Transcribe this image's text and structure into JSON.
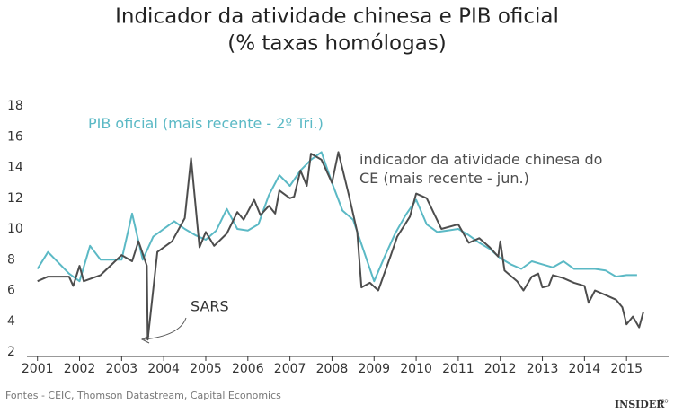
{
  "chart_data": {
    "type": "line",
    "title": "Indicador da atividade chinesa e PIB oficial",
    "subtitle": "(% taxas homólogas)",
    "xlim": [
      2000.75,
      2016.0
    ],
    "xticks": [
      2001,
      2002,
      2003,
      2004,
      2005,
      2006,
      2007,
      2008,
      2009,
      2010,
      2011,
      2012,
      2013,
      2014,
      2015
    ],
    "ylim": [
      2,
      18
    ],
    "yticks": [
      2,
      4,
      6,
      8,
      10,
      12,
      14,
      16,
      18
    ],
    "grid": false,
    "series": [
      {
        "name": "PIB oficial (mais recente - 2º Tri.)",
        "color": "#5bb9c5",
        "x": [
          2001.0,
          2001.25,
          2001.5,
          2001.75,
          2002.0,
          2002.25,
          2002.5,
          2002.75,
          2003.0,
          2003.25,
          2003.5,
          2003.75,
          2004.0,
          2004.25,
          2004.5,
          2004.75,
          2005.0,
          2005.25,
          2005.5,
          2005.75,
          2006.0,
          2006.25,
          2006.5,
          2006.75,
          2007.0,
          2007.25,
          2007.5,
          2007.75,
          2008.0,
          2008.25,
          2008.5,
          2008.75,
          2009.0,
          2009.25,
          2009.5,
          2009.75,
          2010.0,
          2010.25,
          2010.5,
          2010.75,
          2011.0,
          2011.25,
          2011.5,
          2011.75,
          2012.0,
          2012.25,
          2012.5,
          2012.75,
          2013.0,
          2013.25,
          2013.5,
          2013.75,
          2014.0,
          2014.25,
          2014.5,
          2014.75,
          2015.0,
          2015.25
        ],
        "values": [
          7.4,
          8.5,
          7.8,
          7.1,
          6.6,
          8.9,
          8.0,
          8.0,
          8.0,
          11.0,
          8.0,
          9.5,
          10.0,
          10.5,
          10.0,
          9.6,
          9.3,
          9.9,
          11.3,
          10.0,
          9.9,
          10.3,
          12.2,
          13.5,
          12.8,
          13.8,
          14.5,
          15.0,
          13.0,
          11.2,
          10.6,
          8.6,
          6.6,
          8.2,
          9.7,
          10.9,
          11.9,
          10.3,
          9.8,
          9.9,
          10.0,
          9.6,
          9.1,
          8.7,
          8.1,
          7.7,
          7.4,
          7.9,
          7.7,
          7.5,
          7.9,
          7.4,
          7.4,
          7.4,
          7.3,
          6.9,
          7.0,
          7.0
        ]
      },
      {
        "name": "indicador da atividade chinesa do CE (mais recente - jun.)",
        "color": "#4d4d4d",
        "x": [
          2001.0,
          2001.25,
          2001.75,
          2001.85,
          2002.0,
          2002.1,
          2002.5,
          2003.0,
          2003.25,
          2003.4,
          2003.6,
          2003.62,
          2003.85,
          2004.2,
          2004.5,
          2004.65,
          2004.85,
          2005.0,
          2005.2,
          2005.5,
          2005.75,
          2005.9,
          2006.15,
          2006.3,
          2006.5,
          2006.65,
          2006.75,
          2007.0,
          2007.1,
          2007.25,
          2007.4,
          2007.5,
          2007.75,
          2008.0,
          2008.15,
          2008.4,
          2008.6,
          2008.7,
          2008.9,
          2009.1,
          2009.4,
          2009.55,
          2009.85,
          2010.0,
          2010.25,
          2010.6,
          2011.0,
          2011.25,
          2011.5,
          2011.75,
          2011.95,
          2012.0,
          2012.1,
          2012.4,
          2012.55,
          2012.75,
          2012.9,
          2013.0,
          2013.15,
          2013.25,
          2013.5,
          2013.75,
          2014.0,
          2014.1,
          2014.25,
          2014.5,
          2014.75,
          2014.9,
          2015.0,
          2015.15,
          2015.3,
          2015.4
        ],
        "values": [
          6.6,
          6.9,
          6.9,
          6.3,
          7.6,
          6.6,
          7.0,
          8.3,
          7.9,
          9.2,
          7.6,
          2.8,
          8.5,
          9.2,
          10.7,
          14.6,
          8.8,
          9.8,
          8.9,
          9.7,
          11.1,
          10.6,
          11.9,
          10.9,
          11.5,
          11.0,
          12.5,
          12.0,
          12.1,
          13.8,
          12.8,
          14.9,
          14.5,
          13.0,
          15.0,
          12.2,
          9.8,
          6.2,
          6.5,
          6.0,
          8.3,
          9.5,
          10.8,
          12.3,
          12.0,
          10.0,
          10.3,
          9.1,
          9.4,
          8.8,
          8.2,
          9.2,
          7.3,
          6.6,
          6.0,
          6.9,
          7.1,
          6.2,
          6.3,
          7.0,
          6.8,
          6.5,
          6.3,
          5.2,
          6.0,
          5.7,
          5.4,
          4.9,
          3.8,
          4.3,
          3.6,
          4.6
        ]
      }
    ],
    "annotations": [
      "SARS"
    ],
    "source": "Fontes - CEIC, Thomson Datastream, Capital Economics",
    "logo": "INSIDER",
    "logo_sup": "PRO"
  }
}
